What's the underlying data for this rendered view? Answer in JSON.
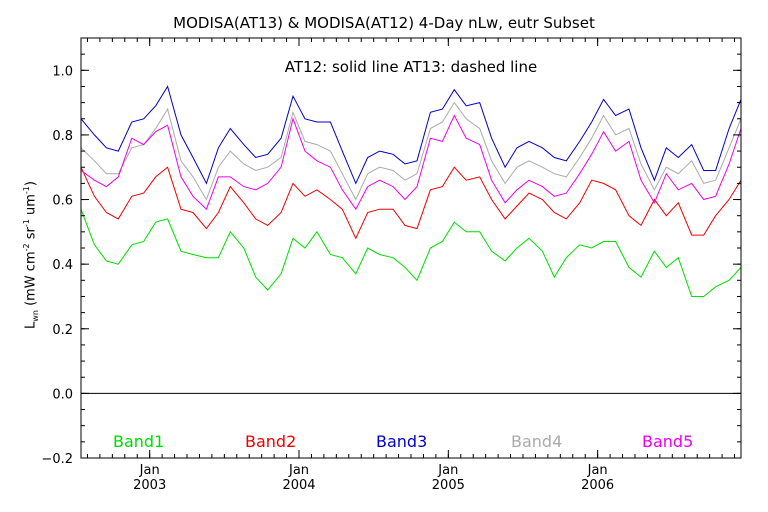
{
  "chart_data": {
    "type": "line",
    "title": "MODISA(AT13) & MODISA(AT12) 4-Day nLw, eutr Subset",
    "subtitle": "AT12: solid line   AT13: dashed line",
    "ylabel_parts": [
      "L",
      "wn",
      " (mW cm",
      "-2",
      " sr",
      "-1",
      " um",
      "-1",
      ")"
    ],
    "ylim": [
      -0.2,
      1.1
    ],
    "yticks": [
      -0.2,
      0.0,
      0.2,
      0.4,
      0.6,
      0.8,
      1.0
    ],
    "ytick_labels": [
      "−0.2",
      "0.0",
      "0.2",
      "0.4",
      "0.6",
      "0.8",
      "1.0"
    ],
    "xlim": [
      2002.54,
      2006.96
    ],
    "xticks": [
      {
        "x": 2003.0,
        "top": "Jan",
        "bottom": "2003"
      },
      {
        "x": 2004.0,
        "top": "Jan",
        "bottom": "2004"
      },
      {
        "x": 2005.0,
        "top": "Jan",
        "bottom": "2005"
      },
      {
        "x": 2006.0,
        "top": "Jan",
        "bottom": "2006"
      }
    ],
    "zero_line": 0.0,
    "grid": false,
    "x": [
      2002.54,
      2002.63,
      2002.71,
      2002.79,
      2002.88,
      2002.96,
      2003.04,
      2003.12,
      2003.21,
      2003.29,
      2003.38,
      2003.46,
      2003.54,
      2003.63,
      2003.71,
      2003.79,
      2003.88,
      2003.96,
      2004.04,
      2004.12,
      2004.21,
      2004.29,
      2004.38,
      2004.46,
      2004.54,
      2004.63,
      2004.71,
      2004.79,
      2004.88,
      2004.96,
      2005.04,
      2005.12,
      2005.21,
      2005.29,
      2005.38,
      2005.46,
      2005.54,
      2005.63,
      2005.71,
      2005.79,
      2005.88,
      2005.96,
      2006.04,
      2006.12,
      2006.21,
      2006.29,
      2006.38,
      2006.46,
      2006.54,
      2006.63,
      2006.71,
      2006.79,
      2006.88,
      2006.96
    ],
    "series": [
      {
        "name": "Band1",
        "color": "#00dd00",
        "values": [
          0.57,
          0.46,
          0.41,
          0.4,
          0.46,
          0.47,
          0.53,
          0.54,
          0.44,
          0.43,
          0.42,
          0.42,
          0.5,
          0.45,
          0.36,
          0.32,
          0.37,
          0.48,
          0.45,
          0.5,
          0.43,
          0.42,
          0.37,
          0.45,
          0.43,
          0.42,
          0.39,
          0.35,
          0.45,
          0.47,
          0.53,
          0.5,
          0.5,
          0.44,
          0.41,
          0.45,
          0.48,
          0.44,
          0.36,
          0.42,
          0.46,
          0.45,
          0.47,
          0.47,
          0.39,
          0.36,
          0.44,
          0.39,
          0.42,
          0.3,
          0.3,
          0.33,
          0.35,
          0.39
        ]
      },
      {
        "name": "Band2",
        "color": "#ee0000",
        "values": [
          0.7,
          0.61,
          0.56,
          0.54,
          0.61,
          0.62,
          0.67,
          0.7,
          0.57,
          0.56,
          0.51,
          0.56,
          0.64,
          0.59,
          0.54,
          0.52,
          0.56,
          0.65,
          0.61,
          0.63,
          0.6,
          0.57,
          0.48,
          0.56,
          0.57,
          0.57,
          0.52,
          0.51,
          0.63,
          0.64,
          0.7,
          0.66,
          0.67,
          0.6,
          0.54,
          0.58,
          0.62,
          0.6,
          0.56,
          0.54,
          0.59,
          0.66,
          0.65,
          0.63,
          0.55,
          0.52,
          0.6,
          0.55,
          0.59,
          0.49,
          0.49,
          0.55,
          0.6,
          0.66
        ]
      },
      {
        "name": "Band3",
        "color": "#0000cc",
        "values": [
          0.85,
          0.8,
          0.76,
          0.75,
          0.84,
          0.85,
          0.89,
          0.95,
          0.8,
          0.73,
          0.65,
          0.76,
          0.82,
          0.77,
          0.73,
          0.74,
          0.79,
          0.92,
          0.85,
          0.84,
          0.84,
          0.75,
          0.65,
          0.73,
          0.75,
          0.74,
          0.71,
          0.72,
          0.87,
          0.88,
          0.94,
          0.89,
          0.9,
          0.79,
          0.7,
          0.76,
          0.78,
          0.76,
          0.73,
          0.72,
          0.78,
          0.84,
          0.91,
          0.86,
          0.88,
          0.76,
          0.66,
          0.76,
          0.73,
          0.77,
          0.69,
          0.69,
          0.82,
          0.91
        ]
      },
      {
        "name": "Band4",
        "color": "#aaaaaa",
        "values": [
          0.76,
          0.72,
          0.68,
          0.68,
          0.76,
          0.77,
          0.82,
          0.88,
          0.72,
          0.67,
          0.6,
          0.7,
          0.75,
          0.71,
          0.69,
          0.7,
          0.73,
          0.87,
          0.78,
          0.77,
          0.75,
          0.68,
          0.6,
          0.68,
          0.7,
          0.69,
          0.66,
          0.68,
          0.82,
          0.84,
          0.9,
          0.85,
          0.82,
          0.72,
          0.65,
          0.7,
          0.72,
          0.7,
          0.68,
          0.67,
          0.73,
          0.79,
          0.86,
          0.8,
          0.82,
          0.71,
          0.63,
          0.7,
          0.68,
          0.72,
          0.65,
          0.66,
          0.76,
          0.85
        ]
      },
      {
        "name": "Band5",
        "color": "#ee00ee",
        "values": [
          0.69,
          0.66,
          0.64,
          0.67,
          0.79,
          0.77,
          0.81,
          0.83,
          0.67,
          0.61,
          0.57,
          0.67,
          0.67,
          0.64,
          0.63,
          0.65,
          0.7,
          0.85,
          0.75,
          0.72,
          0.7,
          0.63,
          0.57,
          0.64,
          0.66,
          0.64,
          0.6,
          0.64,
          0.79,
          0.78,
          0.86,
          0.79,
          0.77,
          0.66,
          0.59,
          0.63,
          0.66,
          0.64,
          0.61,
          0.62,
          0.68,
          0.74,
          0.81,
          0.75,
          0.78,
          0.66,
          0.59,
          0.68,
          0.63,
          0.65,
          0.6,
          0.61,
          0.71,
          0.82
        ]
      }
    ]
  }
}
